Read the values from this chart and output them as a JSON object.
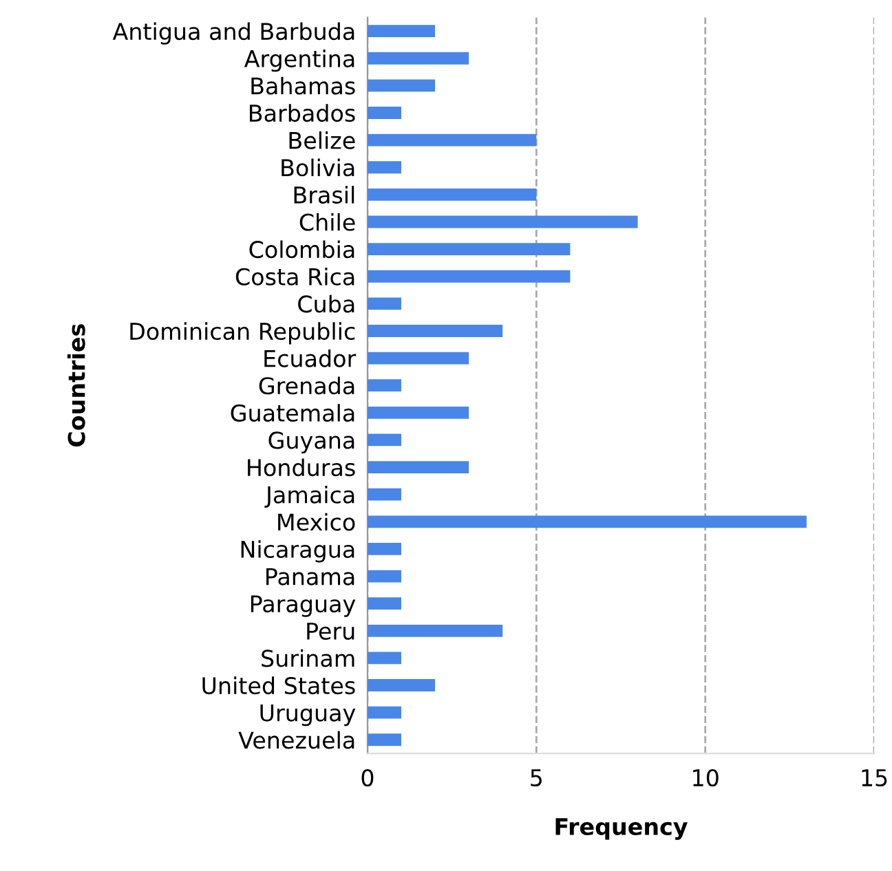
{
  "chart_data": {
    "type": "bar",
    "orientation": "horizontal",
    "xlabel": "Frequency",
    "ylabel": "Countries",
    "categories": [
      "Antigua and Barbuda",
      "Argentina",
      "Bahamas",
      "Barbados",
      "Belize",
      "Bolivia",
      "Brasil",
      "Chile",
      "Colombia",
      "Costa Rica",
      "Cuba",
      "Dominican Republic",
      "Ecuador",
      "Grenada",
      "Guatemala",
      "Guyana",
      "Honduras",
      "Jamaica",
      "Mexico",
      "Nicaragua",
      "Panama",
      "Paraguay",
      "Peru",
      "Surinam",
      "United States",
      "Uruguay",
      "Venezuela"
    ],
    "values": [
      2,
      3,
      2,
      1,
      5,
      1,
      5,
      8,
      6,
      6,
      1,
      4,
      3,
      1,
      3,
      1,
      3,
      1,
      13,
      1,
      1,
      1,
      4,
      1,
      2,
      1,
      1
    ],
    "color": "#4a86e8",
    "xlim": [
      0,
      15
    ],
    "xticks": [
      0,
      5,
      10,
      15
    ],
    "grid": "x",
    "legend": false
  }
}
